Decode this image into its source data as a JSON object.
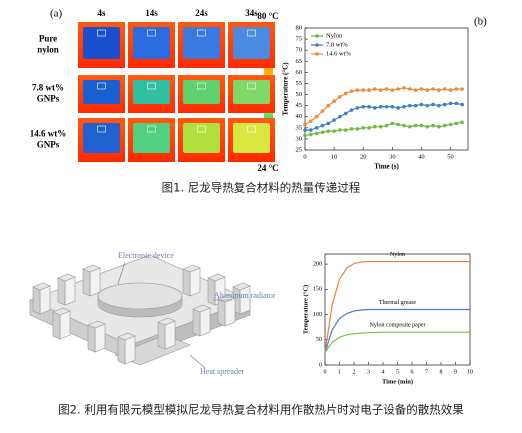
{
  "figure1": {
    "panel_a": {
      "label": "(a)",
      "columns": [
        "4s",
        "14s",
        "24s",
        "34s"
      ],
      "rows": [
        [
          "Pure",
          "nylon"
        ],
        [
          "7.8 wt%",
          "GNPs"
        ],
        [
          "14.6 wt%",
          "GNPs"
        ]
      ],
      "scale_max": "80 °C",
      "scale_min": "24 °C"
    },
    "panel_b": {
      "type": "line",
      "label": "(b)",
      "xlabel": "Time (s)",
      "ylabel": "Temperature (°C)",
      "xlim": [
        0,
        56
      ],
      "xticks": [
        0,
        10,
        20,
        30,
        40,
        50
      ],
      "ylim": [
        25,
        80
      ],
      "yticks": [
        25,
        30,
        35,
        40,
        45,
        50,
        55,
        60,
        65,
        70,
        75,
        80
      ],
      "legend": "upper left",
      "markers": true,
      "x": [
        0,
        2,
        4,
        6,
        8,
        10,
        12,
        14,
        16,
        18,
        20,
        22,
        24,
        26,
        28,
        30,
        32,
        34,
        36,
        38,
        40,
        42,
        44,
        46,
        48,
        50,
        52,
        54
      ],
      "series": [
        {
          "name": "Nylon",
          "color": "#6dbb45",
          "values": [
            31.5,
            32,
            32.5,
            33,
            33.5,
            33.5,
            34,
            34,
            34.5,
            34.5,
            35,
            35,
            35.5,
            35.5,
            36,
            37,
            36.5,
            36,
            35.5,
            36,
            36,
            35.5,
            36,
            35.5,
            36,
            36.5,
            37,
            37.5
          ]
        },
        {
          "name": "7.8 wt%",
          "color": "#3f7fc6",
          "values": [
            34,
            34,
            35,
            36,
            37,
            38.5,
            40,
            41.5,
            43,
            44,
            44.5,
            44.5,
            44,
            44.5,
            44.5,
            44.5,
            44,
            44.5,
            45,
            45,
            45.5,
            45,
            45.5,
            45,
            45.5,
            46,
            46,
            45.5
          ]
        },
        {
          "name": "14.6 wt%",
          "color": "#ee8a3c",
          "values": [
            36.5,
            38,
            40,
            42.5,
            45,
            47,
            49,
            50.5,
            51.5,
            52,
            52,
            52,
            52.5,
            52,
            52.5,
            52,
            52.5,
            53,
            52.5,
            52,
            52.5,
            52,
            52.5,
            52,
            52.5,
            52,
            52.5,
            52.5
          ]
        }
      ]
    },
    "caption": "图1. 尼龙导热复合材料的热量传递过程"
  },
  "figure2": {
    "diagram_labels": [
      "Electronic device",
      "Aluminum radiator",
      "Heat spreader"
    ],
    "chart": {
      "type": "line",
      "xlabel": "Time (min)",
      "ylabel": "Temperature (°C)",
      "xlim": [
        0,
        10
      ],
      "xticks": [
        0,
        1,
        2,
        3,
        4,
        5,
        6,
        7,
        8,
        9,
        10
      ],
      "ylim": [
        0,
        220
      ],
      "yticks": [
        0,
        50,
        100,
        150,
        200
      ],
      "legend": "inline",
      "markers": false,
      "x": [
        0,
        0.5,
        1,
        1.5,
        2,
        2.5,
        3,
        4,
        5,
        6,
        7,
        8,
        9,
        10
      ],
      "series": [
        {
          "name": "Nylon",
          "color": "#e8803a",
          "values": [
            25,
            120,
            170,
            192,
            201,
            204,
            205,
            205,
            205,
            205,
            205,
            205,
            205,
            205
          ]
        },
        {
          "name": "Thermal grease",
          "color": "#4a7fc4",
          "values": [
            25,
            70,
            92,
            102,
            107,
            109,
            110,
            110,
            110,
            110,
            110,
            110,
            110,
            110
          ]
        },
        {
          "name": "Nylon composite paper",
          "color": "#7cbf52",
          "values": [
            25,
            45,
            55,
            60,
            62,
            63,
            64,
            65,
            65,
            65,
            65,
            65,
            65,
            65
          ]
        }
      ]
    },
    "caption": "图2. 利用有限元模型模拟尼龙导热复合材料用作散热片时对电子设备的散热效果"
  }
}
